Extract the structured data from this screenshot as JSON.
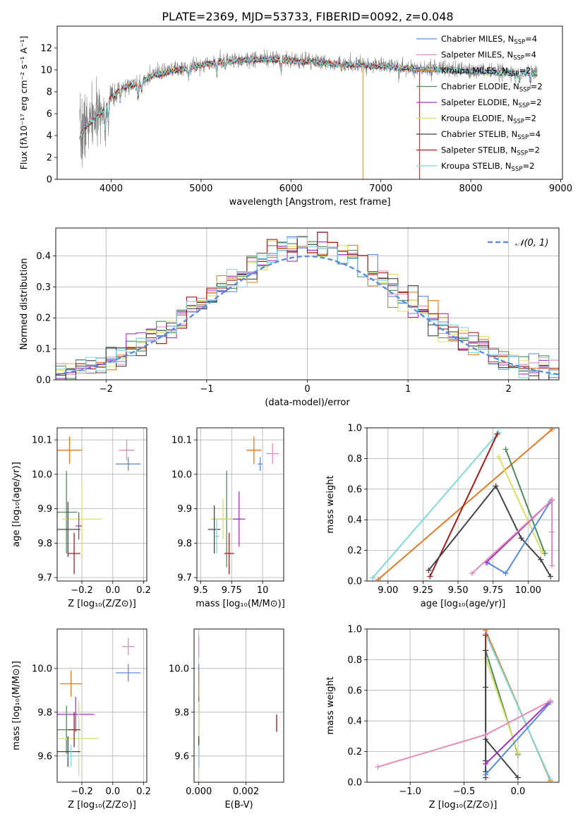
{
  "figure": {
    "title": "PLATE=2369, MJD=53733, FIBERID=0092, z=0.048"
  },
  "colors": {
    "chabrier_miles": "#5b8bd9",
    "salpeter_miles": "#e38bbd",
    "kroupa_miles": "#e07b22",
    "chabrier_elodie": "#4f8a5b",
    "salpeter_elodie": "#a234c4",
    "kroupa_elodie": "#d8e066",
    "chabrier_stelib": "#444444",
    "salpeter_stelib": "#a31b1b",
    "kroupa_stelib": "#7fd8e0",
    "data": "#808080",
    "normal": "#5b8bd9"
  },
  "chart_data": [
    {
      "id": "spectrum",
      "type": "line",
      "xlabel": "wavelength [Angstrom, rest frame]",
      "ylabel": "Flux [fλ10⁻¹⁷ erg cm⁻² s⁻¹ A⁻¹]",
      "xlim": [
        3400,
        9020
      ],
      "ylim": [
        0,
        14
      ],
      "xticks": [
        4000,
        5000,
        6000,
        7000,
        8000,
        9000
      ],
      "yticks": [
        0,
        2,
        4,
        6,
        8,
        10,
        12
      ],
      "legend_position": "right",
      "legend": [
        {
          "label": "Chabrier MILES, N",
          "sub": "SSP",
          "eq": "=4",
          "color": "chabrier_miles"
        },
        {
          "label": "Salpeter MILES, N",
          "sub": "SSP",
          "eq": "=4",
          "color": "salpeter_miles"
        },
        {
          "label": "Kroupa MILES, N",
          "sub": "SSP",
          "eq": "=2",
          "color": "kroupa_miles"
        },
        {
          "label": "Chabrier ELODIE, N",
          "sub": "SSP",
          "eq": "=2",
          "color": "chabrier_elodie"
        },
        {
          "label": "Salpeter ELODIE, N",
          "sub": "SSP",
          "eq": "=2",
          "color": "salpeter_elodie"
        },
        {
          "label": "Kroupa ELODIE, N",
          "sub": "SSP",
          "eq": "=2",
          "color": "kroupa_elodie"
        },
        {
          "label": "Chabrier STELIB, N",
          "sub": "SSP",
          "eq": "=4",
          "color": "chabrier_stelib"
        },
        {
          "label": "Salpeter STELIB, N",
          "sub": "SSP",
          "eq": "=2",
          "color": "salpeter_stelib"
        },
        {
          "label": "Kroupa STELIB, N",
          "sub": "SSP",
          "eq": "=2",
          "color": "kroupa_stelib"
        }
      ],
      "continuum": [
        [
          3650,
          3.8
        ],
        [
          3700,
          4.8
        ],
        [
          3800,
          5.5
        ],
        [
          3900,
          6.2
        ],
        [
          4000,
          7.5
        ],
        [
          4100,
          8.3
        ],
        [
          4200,
          8.6
        ],
        [
          4300,
          8.7
        ],
        [
          4400,
          9.3
        ],
        [
          4500,
          9.6
        ],
        [
          4700,
          10.0
        ],
        [
          4900,
          10.3
        ],
        [
          5000,
          10.5
        ],
        [
          5200,
          10.8
        ],
        [
          5400,
          10.9
        ],
        [
          5600,
          11.0
        ],
        [
          5800,
          11.0
        ],
        [
          6000,
          10.9
        ],
        [
          6200,
          10.8
        ],
        [
          6500,
          10.6
        ],
        [
          6800,
          10.5
        ],
        [
          7000,
          10.4
        ],
        [
          7200,
          10.3
        ],
        [
          7400,
          10.1
        ],
        [
          7600,
          10.1
        ],
        [
          7800,
          10.1
        ],
        [
          8000,
          9.9
        ],
        [
          8200,
          9.9
        ],
        [
          8400,
          9.8
        ],
        [
          8600,
          9.8
        ],
        [
          8740,
          9.7
        ]
      ],
      "absorptions": [
        [
          3934,
          2.0
        ],
        [
          3969,
          1.8
        ],
        [
          4102,
          1.0
        ],
        [
          4300,
          1.2
        ],
        [
          4340,
          0.8
        ],
        [
          4861,
          0.8
        ],
        [
          5175,
          1.0
        ],
        [
          5270,
          0.6
        ],
        [
          5890,
          1.0
        ],
        [
          6563,
          0.5
        ],
        [
          7200,
          0.5
        ],
        [
          8498,
          0.6
        ],
        [
          8542,
          0.8
        ],
        [
          8662,
          0.7
        ]
      ],
      "drops": [
        {
          "x": 6800,
          "color": "kroupa_miles"
        },
        {
          "x": 7430,
          "color": "salpeter_stelib"
        }
      ]
    },
    {
      "id": "residuals",
      "type": "histogram",
      "xlabel": "(data-model)/error",
      "ylabel": "Normed distribution",
      "xlim": [
        -2.5,
        2.5
      ],
      "ylim": [
        0,
        0.49
      ],
      "xticks": [
        -2,
        -1,
        0,
        1,
        2
      ],
      "yticks": [
        0.0,
        0.1,
        0.2,
        0.3,
        0.4
      ],
      "bin_width": 0.1,
      "legend": {
        "label": "𝒩(0, 1)",
        "position": "top-right"
      }
    },
    {
      "id": "age_vs_z",
      "type": "errorbar",
      "xlabel": "Z [log₁₀(Z/Z⊙)]",
      "ylabel": "age  [log₁₀(age/yr)]",
      "xlim": [
        -0.36,
        0.22
      ],
      "ylim": [
        9.69,
        10.135
      ],
      "xticks": [
        -0.2,
        0.0,
        0.2
      ],
      "yticks": [
        9.7,
        9.8,
        9.9,
        10.0,
        10.1
      ],
      "points": [
        {
          "x": -0.28,
          "y": 10.07,
          "xerr": 0.08,
          "yerr": 0.04,
          "color": "kroupa_miles"
        },
        {
          "x": 0.09,
          "y": 10.07,
          "xerr": 0.05,
          "yerr": 0.03,
          "color": "salpeter_miles"
        },
        {
          "x": 0.1,
          "y": 10.03,
          "xerr": 0.08,
          "yerr": 0.02,
          "color": "chabrier_miles"
        },
        {
          "x": -0.3,
          "y": 9.89,
          "xerr": 0.07,
          "yerr": 0.12,
          "color": "chabrier_elodie"
        },
        {
          "x": -0.2,
          "y": 9.87,
          "xerr": 0.13,
          "yerr": 0.11,
          "color": "kroupa_elodie"
        },
        {
          "x": -0.29,
          "y": 9.84,
          "xerr": 0.08,
          "yerr": 0.08,
          "color": "chabrier_stelib"
        },
        {
          "x": -0.25,
          "y": 9.77,
          "xerr": 0.04,
          "yerr": 0.06,
          "color": "salpeter_stelib"
        },
        {
          "x": -0.22,
          "y": 9.85,
          "xerr": 0.02,
          "yerr": 0.04,
          "color": "salpeter_elodie"
        }
      ]
    },
    {
      "id": "age_vs_mass",
      "type": "errorbar",
      "xlabel": "mass [log₁₀(M/M⊙)]",
      "ylabel": "",
      "xlim": [
        9.47,
        10.17
      ],
      "ylim": [
        9.69,
        10.135
      ],
      "xticks": [
        9.5,
        9.75,
        10.0
      ],
      "yticks": [
        9.7,
        9.8,
        9.9,
        10.0,
        10.1
      ],
      "points": [
        {
          "x": 9.93,
          "y": 10.07,
          "xerr": 0.06,
          "yerr": 0.04,
          "color": "kroupa_miles"
        },
        {
          "x": 10.08,
          "y": 10.06,
          "xerr": 0.05,
          "yerr": 0.03,
          "color": "salpeter_miles"
        },
        {
          "x": 9.98,
          "y": 10.03,
          "xerr": 0.02,
          "yerr": 0.02,
          "color": "chabrier_miles"
        },
        {
          "x": 9.71,
          "y": 9.87,
          "xerr": 0.11,
          "yerr": 0.14,
          "color": "chabrier_elodie"
        },
        {
          "x": 9.68,
          "y": 9.87,
          "xerr": 0.1,
          "yerr": 0.06,
          "color": "kroupa_elodie"
        },
        {
          "x": 9.61,
          "y": 9.84,
          "xerr": 0.05,
          "yerr": 0.07,
          "color": "chabrier_stelib"
        },
        {
          "x": 9.73,
          "y": 9.77,
          "xerr": 0.04,
          "yerr": 0.06,
          "color": "salpeter_stelib"
        },
        {
          "x": 9.81,
          "y": 9.87,
          "xerr": 0.05,
          "yerr": 0.08,
          "color": "salpeter_elodie"
        },
        {
          "x": 9.63,
          "y": 9.82,
          "xerr": 0.02,
          "yerr": 0.05,
          "color": "kroupa_stelib"
        }
      ]
    },
    {
      "id": "weight_vs_age",
      "type": "line",
      "xlabel": "age  [log₁₀(age/yr)]",
      "ylabel": "mass weight",
      "xlim": [
        8.85,
        10.22
      ],
      "ylim": [
        0,
        1.0
      ],
      "xticks": [
        9.0,
        9.25,
        9.5,
        9.75,
        10.0
      ],
      "yticks": [
        0.0,
        0.2,
        0.4,
        0.6,
        0.8,
        1.0
      ],
      "series": [
        {
          "color": "kroupa_miles",
          "points": [
            [
              8.93,
              0.01
            ],
            [
              10.17,
              0.99
            ]
          ]
        },
        {
          "color": "kroupa_stelib",
          "points": [
            [
              8.89,
              0.02
            ],
            [
              9.79,
              0.97
            ]
          ]
        },
        {
          "color": "salpeter_stelib",
          "points": [
            [
              9.3,
              0.03
            ],
            [
              9.78,
              0.96
            ]
          ]
        },
        {
          "color": "chabrier_stelib",
          "points": [
            [
              9.29,
              0.07
            ],
            [
              9.77,
              0.62
            ],
            [
              9.95,
              0.28
            ],
            [
              10.09,
              0.14
            ],
            [
              10.16,
              0.03
            ]
          ]
        },
        {
          "color": "chabrier_elodie",
          "points": [
            [
              9.84,
              0.86
            ],
            [
              10.12,
              0.18
            ]
          ]
        },
        {
          "color": "kroupa_elodie",
          "points": [
            [
              9.79,
              0.81
            ],
            [
              10.1,
              0.19
            ]
          ]
        },
        {
          "color": "chabrier_miles",
          "points": [
            [
              9.71,
              0.12
            ],
            [
              9.84,
              0.05
            ],
            [
              10.16,
              0.52
            ]
          ]
        },
        {
          "color": "salpeter_elodie",
          "points": [
            [
              9.7,
              0.12
            ],
            [
              10.17,
              0.53
            ]
          ]
        },
        {
          "color": "salpeter_miles",
          "points": [
            [
              9.6,
              0.05
            ],
            [
              10.17,
              0.53
            ],
            [
              10.17,
              0.32
            ],
            [
              10.17,
              0.1
            ]
          ]
        }
      ]
    },
    {
      "id": "mass_vs_z",
      "type": "errorbar",
      "xlabel": "Z [log₁₀(Z/Z⊙)]",
      "ylabel": "mass [log₁₀(M/M⊙)]",
      "xlim": [
        -0.36,
        0.22
      ],
      "ylim": [
        9.48,
        10.18
      ],
      "xticks": [
        -0.2,
        0.0,
        0.2
      ],
      "yticks": [
        9.6,
        9.8,
        10.0
      ],
      "points": [
        {
          "x": -0.27,
          "y": 9.93,
          "xerr": 0.07,
          "yerr": 0.06,
          "color": "kroupa_miles"
        },
        {
          "x": 0.1,
          "y": 10.1,
          "xerr": 0.04,
          "yerr": 0.04,
          "color": "salpeter_miles"
        },
        {
          "x": 0.1,
          "y": 9.98,
          "xerr": 0.08,
          "yerr": 0.04,
          "color": "chabrier_miles"
        },
        {
          "x": -0.24,
          "y": 9.79,
          "xerr": 0.12,
          "yerr": 0.08,
          "color": "salpeter_elodie"
        },
        {
          "x": -0.3,
          "y": 9.72,
          "xerr": 0.07,
          "yerr": 0.11,
          "color": "chabrier_elodie"
        },
        {
          "x": -0.22,
          "y": 9.68,
          "xerr": 0.13,
          "yerr": 0.17,
          "color": "kroupa_elodie"
        },
        {
          "x": -0.29,
          "y": 9.62,
          "xerr": 0.08,
          "yerr": 0.07,
          "color": "chabrier_stelib"
        },
        {
          "x": -0.25,
          "y": 9.72,
          "xerr": 0.04,
          "yerr": 0.08,
          "color": "salpeter_stelib"
        },
        {
          "x": -0.27,
          "y": 9.6,
          "xerr": 0.03,
          "yerr": 0.05,
          "color": "kroupa_stelib"
        }
      ]
    },
    {
      "id": "mass_vs_ebv",
      "type": "errorbar",
      "xlabel": "E(B-V)",
      "ylabel": "",
      "xlim": [
        -0.0002,
        0.0036
      ],
      "ylim": [
        9.48,
        10.18
      ],
      "xticks": [
        0.0,
        0.002
      ],
      "yticks": [
        9.6,
        9.8,
        10.0
      ],
      "points": [
        {
          "x": 0.0,
          "y": 10.1,
          "xerr": 0,
          "yerr": 0.05,
          "color": "salpeter_miles"
        },
        {
          "x": 0.0,
          "y": 9.98,
          "xerr": 0,
          "yerr": 0.04,
          "color": "chabrier_miles"
        },
        {
          "x": 0.0,
          "y": 9.93,
          "xerr": 0,
          "yerr": 0.06,
          "color": "kroupa_miles"
        },
        {
          "x": 0.0,
          "y": 9.79,
          "xerr": 0,
          "yerr": 0.08,
          "color": "salpeter_elodie"
        },
        {
          "x": 0.0,
          "y": 9.72,
          "xerr": 0,
          "yerr": 0.11,
          "color": "chabrier_elodie"
        },
        {
          "x": 0.0,
          "y": 9.68,
          "xerr": 0,
          "yerr": 0.17,
          "color": "kroupa_elodie"
        },
        {
          "x": 0.0,
          "y": 9.62,
          "xerr": 0,
          "yerr": 0.07,
          "color": "chabrier_stelib"
        },
        {
          "x": 0.0,
          "y": 9.6,
          "xerr": 0,
          "yerr": 0.05,
          "color": "kroupa_stelib"
        },
        {
          "x": 0.0033,
          "y": 9.75,
          "xerr": 0,
          "yerr": 0.04,
          "color": "salpeter_stelib"
        }
      ]
    },
    {
      "id": "weight_vs_z",
      "type": "line",
      "xlabel": "Z [log₁₀(Z/Z⊙)]",
      "ylabel": "mass weight",
      "xlim": [
        -1.4,
        0.38
      ],
      "ylim": [
        0,
        1.0
      ],
      "xticks": [
        -1.0,
        -0.5,
        0.0
      ],
      "yticks": [
        0.0,
        0.2,
        0.4,
        0.6,
        0.8,
        1.0
      ],
      "series": [
        {
          "color": "kroupa_miles",
          "points": [
            [
              -0.3,
              0.99
            ],
            [
              0.3,
              0.01
            ]
          ]
        },
        {
          "color": "kroupa_stelib",
          "points": [
            [
              -0.3,
              0.97
            ],
            [
              0.3,
              0.02
            ]
          ]
        },
        {
          "color": "chabrier_elodie",
          "points": [
            [
              -0.3,
              0.86
            ],
            [
              0.0,
              0.18
            ]
          ]
        },
        {
          "color": "kroupa_elodie",
          "points": [
            [
              -0.3,
              0.81
            ],
            [
              0.0,
              0.19
            ]
          ]
        },
        {
          "color": "salpeter_stelib",
          "points": [
            [
              -0.3,
              0.96
            ],
            [
              -0.3,
              0.03
            ]
          ]
        },
        {
          "color": "chabrier_stelib",
          "points": [
            [
              -0.3,
              0.86
            ],
            [
              -0.3,
              0.62
            ],
            [
              -0.3,
              0.14
            ],
            [
              -0.3,
              0.07
            ],
            [
              -0.3,
              0.28
            ],
            [
              0.0,
              0.03
            ]
          ]
        },
        {
          "color": "chabrier_miles",
          "points": [
            [
              -0.3,
              0.05
            ],
            [
              0.3,
              0.52
            ]
          ]
        },
        {
          "color": "salpeter_elodie",
          "points": [
            [
              -0.3,
              0.12
            ],
            [
              0.3,
              0.53
            ]
          ]
        },
        {
          "color": "salpeter_miles",
          "points": [
            [
              -1.3,
              0.1
            ],
            [
              -0.3,
              0.31
            ],
            [
              0.3,
              0.53
            ]
          ]
        }
      ]
    }
  ]
}
